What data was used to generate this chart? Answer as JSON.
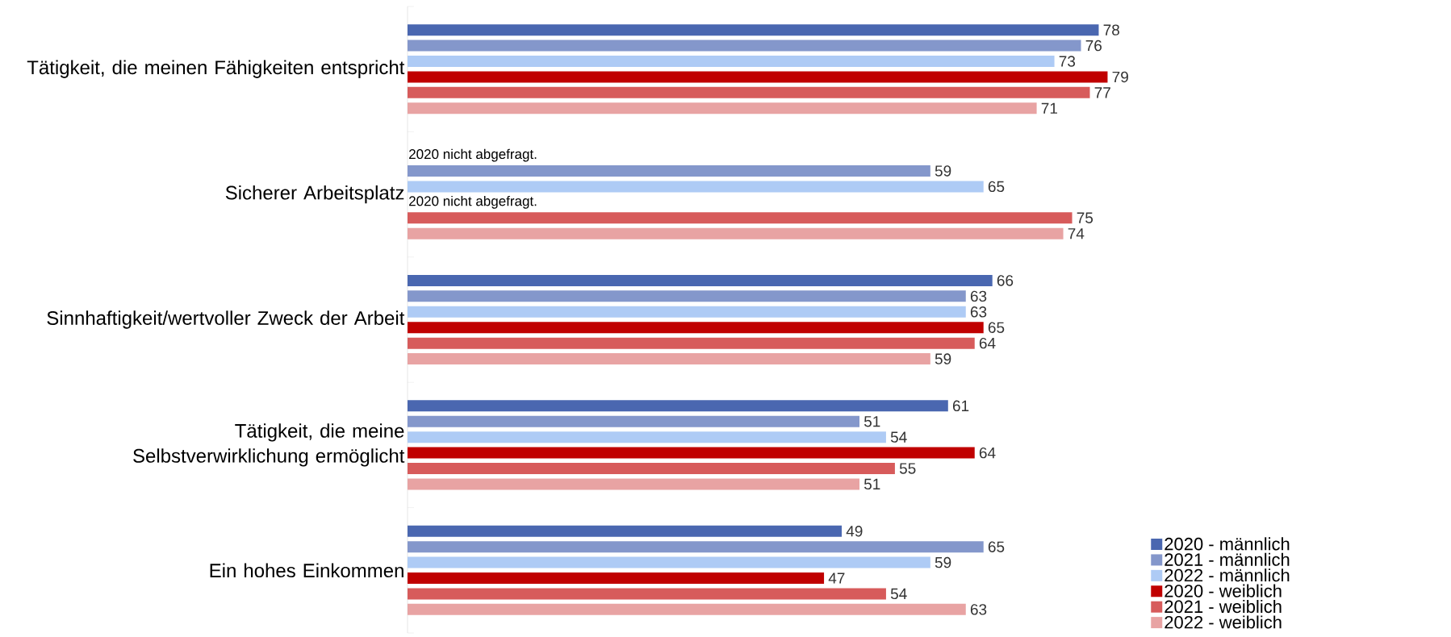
{
  "chart_data": {
    "type": "bar",
    "orientation": "horizontal",
    "data_labels": true,
    "legend": "bottom right",
    "categories": [
      "Tätigkeit, die meinen Fähigkeiten entspricht",
      "Sicherer Arbeitsplatz",
      "Sinnhaftigkeit/wertvoller Zweck der Arbeit",
      "Tätigkeit, die meine Selbstverwirklichung ermöglicht",
      "Ein hohes Einkommen"
    ],
    "series": [
      {
        "name": "2020 - männlich",
        "color": "#4a67b0",
        "values": [
          78,
          null,
          66,
          61,
          49
        ]
      },
      {
        "name": "2021 - männlich",
        "color": "#8497cb",
        "values": [
          76,
          59,
          63,
          51,
          65
        ]
      },
      {
        "name": "2022 - männlich",
        "color": "#aecbf5",
        "values": [
          73,
          65,
          63,
          54,
          59
        ]
      },
      {
        "name": "2020 - weiblich",
        "color": "#c00000",
        "values": [
          79,
          null,
          65,
          64,
          47
        ]
      },
      {
        "name": "2021 - weiblich",
        "color": "#d75b5b",
        "values": [
          77,
          75,
          64,
          55,
          54
        ]
      },
      {
        "name": "2022 - weiblich",
        "color": "#e8a3a3",
        "values": [
          71,
          74,
          59,
          51,
          63
        ]
      }
    ],
    "annotations": [
      {
        "text": "2020 nicht abgefragt.",
        "y": "Sicherer Arbeitsplatz"
      },
      {
        "text": "2020 nicht abgefragt.",
        "y": "Sicherer Arbeitsplatz"
      }
    ]
  }
}
